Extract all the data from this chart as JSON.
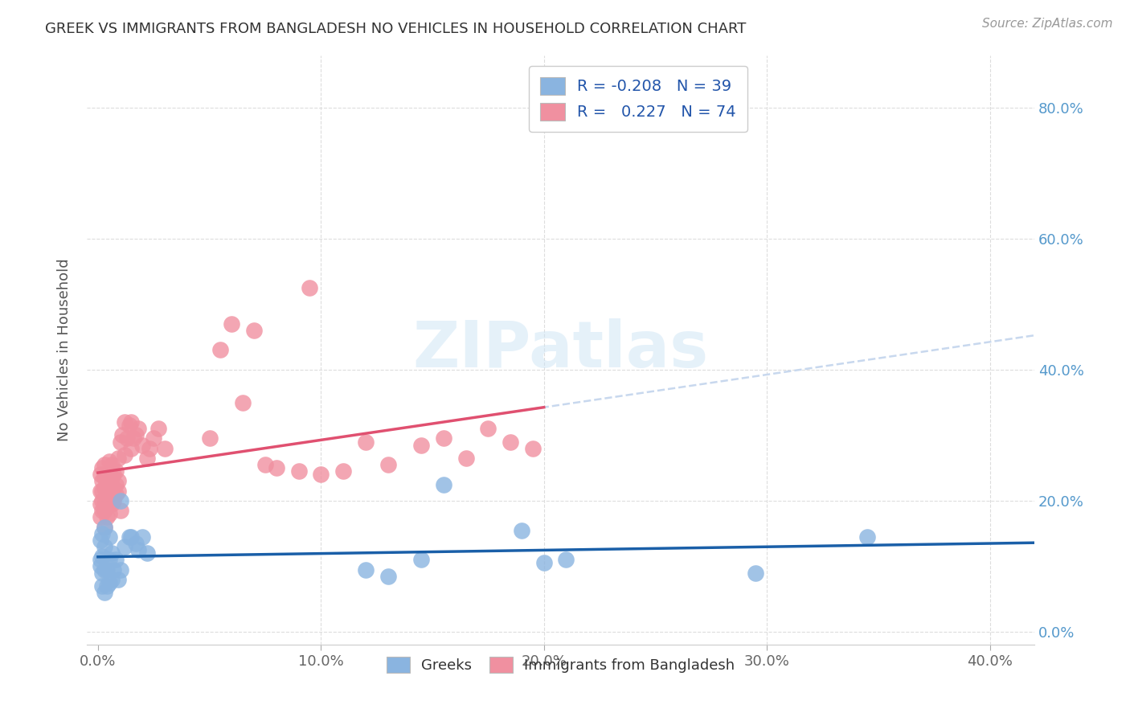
{
  "title": "GREEK VS IMMIGRANTS FROM BANGLADESH NO VEHICLES IN HOUSEHOLD CORRELATION CHART",
  "source": "Source: ZipAtlas.com",
  "ylabel": "No Vehicles in Household",
  "group1_label": "Greeks",
  "group2_label": "Immigrants from Bangladesh",
  "group1_color": "#8ab4e0",
  "group2_color": "#f090a0",
  "group1_line_color": "#1a5fa8",
  "group2_line_color": "#e05070",
  "trendline_dashed_color": "#c8d8ee",
  "watermark": "ZIPatlas",
  "xlim": [
    0.0,
    0.42
  ],
  "ylim": [
    -0.02,
    0.88
  ],
  "xtick_vals": [
    0.0,
    0.1,
    0.2,
    0.3,
    0.4
  ],
  "ytick_vals": [
    0.0,
    0.2,
    0.4,
    0.6,
    0.8
  ],
  "group1_R": -0.208,
  "group1_N": 39,
  "group2_R": 0.227,
  "group2_N": 74,
  "greek_x": [
    0.001,
    0.001,
    0.001,
    0.002,
    0.002,
    0.002,
    0.002,
    0.003,
    0.003,
    0.003,
    0.003,
    0.004,
    0.004,
    0.005,
    0.005,
    0.005,
    0.006,
    0.006,
    0.007,
    0.008,
    0.009,
    0.01,
    0.01,
    0.012,
    0.014,
    0.015,
    0.017,
    0.018,
    0.02,
    0.022,
    0.12,
    0.13,
    0.145,
    0.155,
    0.19,
    0.2,
    0.21,
    0.295,
    0.345
  ],
  "greek_y": [
    0.1,
    0.11,
    0.14,
    0.07,
    0.09,
    0.115,
    0.15,
    0.06,
    0.095,
    0.13,
    0.16,
    0.07,
    0.095,
    0.075,
    0.11,
    0.145,
    0.08,
    0.12,
    0.095,
    0.11,
    0.08,
    0.095,
    0.2,
    0.13,
    0.145,
    0.145,
    0.135,
    0.125,
    0.145,
    0.12,
    0.095,
    0.085,
    0.11,
    0.225,
    0.155,
    0.105,
    0.11,
    0.09,
    0.145
  ],
  "bangladesh_x": [
    0.001,
    0.001,
    0.001,
    0.001,
    0.002,
    0.002,
    0.002,
    0.002,
    0.002,
    0.003,
    0.003,
    0.003,
    0.003,
    0.003,
    0.003,
    0.004,
    0.004,
    0.004,
    0.004,
    0.005,
    0.005,
    0.005,
    0.005,
    0.005,
    0.006,
    0.006,
    0.006,
    0.006,
    0.007,
    0.007,
    0.007,
    0.008,
    0.008,
    0.008,
    0.009,
    0.009,
    0.009,
    0.01,
    0.01,
    0.011,
    0.012,
    0.012,
    0.013,
    0.014,
    0.015,
    0.015,
    0.016,
    0.017,
    0.018,
    0.02,
    0.022,
    0.023,
    0.025,
    0.027,
    0.03,
    0.05,
    0.055,
    0.06,
    0.065,
    0.07,
    0.075,
    0.08,
    0.09,
    0.095,
    0.1,
    0.11,
    0.12,
    0.13,
    0.145,
    0.155,
    0.165,
    0.175,
    0.185,
    0.195
  ],
  "bangladesh_y": [
    0.175,
    0.195,
    0.215,
    0.24,
    0.185,
    0.2,
    0.215,
    0.23,
    0.25,
    0.16,
    0.185,
    0.195,
    0.22,
    0.235,
    0.255,
    0.175,
    0.195,
    0.215,
    0.24,
    0.18,
    0.2,
    0.22,
    0.24,
    0.26,
    0.195,
    0.215,
    0.235,
    0.255,
    0.2,
    0.22,
    0.24,
    0.21,
    0.225,
    0.245,
    0.215,
    0.23,
    0.265,
    0.185,
    0.29,
    0.3,
    0.27,
    0.32,
    0.295,
    0.315,
    0.28,
    0.32,
    0.295,
    0.3,
    0.31,
    0.285,
    0.265,
    0.28,
    0.295,
    0.31,
    0.28,
    0.295,
    0.43,
    0.47,
    0.35,
    0.46,
    0.255,
    0.25,
    0.245,
    0.525,
    0.24,
    0.245,
    0.29,
    0.255,
    0.285,
    0.295,
    0.265,
    0.31,
    0.29,
    0.28
  ]
}
